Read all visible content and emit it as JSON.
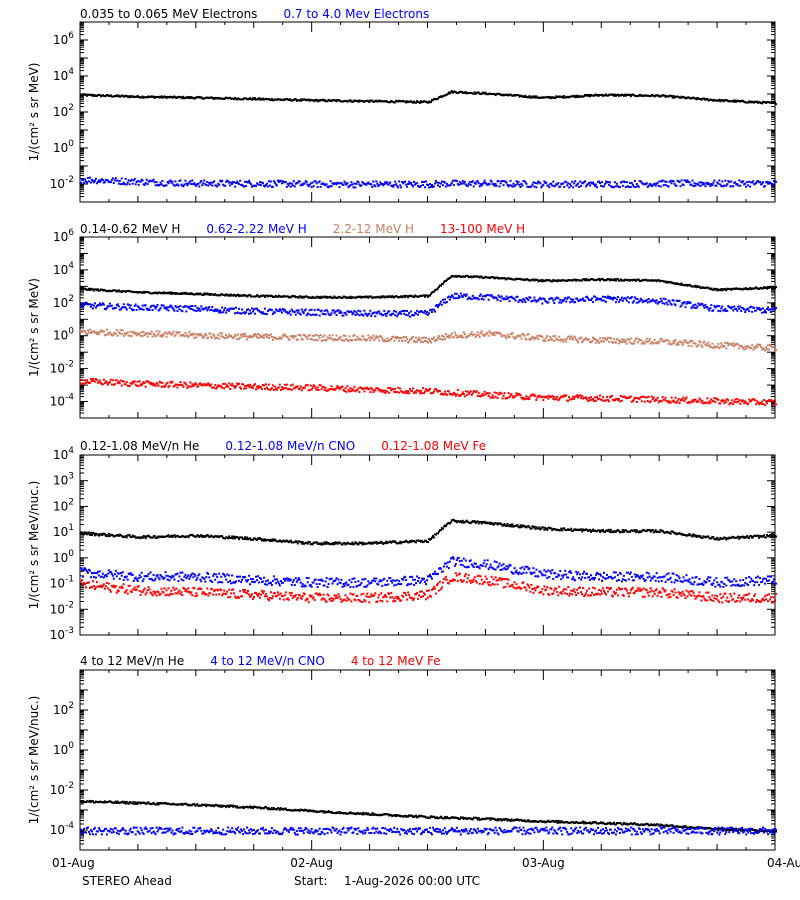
{
  "footer": {
    "spacecraft": "STEREO Ahead",
    "start_label": "Start:",
    "start_value": "1-Aug-2026 00:00 UTC"
  },
  "x_axis": {
    "tick_labels": [
      "01-Aug",
      "02-Aug",
      "03-Aug",
      "04-Aug"
    ],
    "range_days": [
      0,
      3
    ]
  },
  "chart_data": [
    {
      "type": "scatter",
      "title": "",
      "ylabel": "1/(cm² s sr MeV)",
      "yscale": "log",
      "ylim_exp": [
        -3,
        7
      ],
      "ytick_exps": [
        -2,
        0,
        2,
        4,
        6
      ],
      "x": [
        0,
        0.25,
        0.5,
        0.75,
        1.0,
        1.25,
        1.5,
        1.6,
        1.75,
        2.0,
        2.25,
        2.5,
        2.75,
        3.0
      ],
      "series": [
        {
          "name": "0.035 to 0.065 MeV Electrons",
          "color": "#000000",
          "values": [
            1000,
            800,
            700,
            600,
            500,
            450,
            400,
            1500,
            1200,
            700,
            1000,
            900,
            500,
            350
          ]
        },
        {
          "name": "0.7 to 4.0 Mev Electrons",
          "color": "#0000ff",
          "values": [
            0.02,
            0.015,
            0.012,
            0.012,
            0.011,
            0.011,
            0.011,
            0.012,
            0.012,
            0.011,
            0.011,
            0.012,
            0.012,
            0.012
          ]
        }
      ]
    },
    {
      "type": "scatter",
      "title": "",
      "ylabel": "1/(cm² s sr MeV)",
      "yscale": "log",
      "ylim_exp": [
        -5,
        6
      ],
      "ytick_exps": [
        -4,
        -2,
        0,
        2,
        4,
        6
      ],
      "x": [
        0,
        0.25,
        0.5,
        0.75,
        1.0,
        1.25,
        1.5,
        1.6,
        1.75,
        2.0,
        2.25,
        2.5,
        2.75,
        3.0
      ],
      "series": [
        {
          "name": "0.14-0.62 MeV H",
          "color": "#000000",
          "values": [
            800,
            500,
            400,
            300,
            250,
            250,
            300,
            5000,
            4000,
            2500,
            3000,
            2500,
            700,
            1000
          ]
        },
        {
          "name": "0.62-2.22 MeV H",
          "color": "#0000ff",
          "values": [
            80,
            60,
            50,
            35,
            30,
            25,
            25,
            300,
            250,
            150,
            200,
            150,
            50,
            40
          ]
        },
        {
          "name": "2.2-12 MeV H",
          "color": "#cc8066",
          "values": [
            2.0,
            1.6,
            1.2,
            1.0,
            0.9,
            0.8,
            0.6,
            1.2,
            1.5,
            0.8,
            0.6,
            0.5,
            0.3,
            0.2
          ]
        },
        {
          "name": "13-100 MeV H",
          "color": "#ff0000",
          "values": [
            0.002,
            0.0014,
            0.0011,
            0.0009,
            0.0008,
            0.0006,
            0.0005,
            0.0004,
            0.0003,
            0.0002,
            0.00018,
            0.00015,
            0.00012,
            0.0001
          ]
        }
      ]
    },
    {
      "type": "scatter",
      "title": "",
      "ylabel": "1/(cm² s sr MeV/nuc.)",
      "yscale": "log",
      "ylim_exp": [
        -3,
        4
      ],
      "ytick_exps": [
        -3,
        -2,
        -1,
        0,
        1,
        2,
        3,
        4
      ],
      "x": [
        0,
        0.25,
        0.5,
        0.75,
        1.0,
        1.25,
        1.5,
        1.6,
        1.75,
        2.0,
        2.25,
        2.5,
        2.75,
        3.0
      ],
      "series": [
        {
          "name": "0.12-1.08 MeV/n He",
          "color": "#000000",
          "values": [
            10,
            7,
            8,
            6,
            4,
            4,
            5,
            30,
            25,
            15,
            12,
            12,
            6,
            8
          ]
        },
        {
          "name": "0.12-1.08 MeV/n CNO",
          "color": "#0000ff",
          "values": [
            0.3,
            0.2,
            0.2,
            0.15,
            0.12,
            0.12,
            0.15,
            0.8,
            0.6,
            0.25,
            0.2,
            0.2,
            0.12,
            0.15
          ]
        },
        {
          "name": "0.12-1.08 MeV Fe",
          "color": "#ff0000",
          "values": [
            0.1,
            0.06,
            0.05,
            0.04,
            0.03,
            0.03,
            0.04,
            0.2,
            0.15,
            0.06,
            0.05,
            0.05,
            0.03,
            0.03
          ]
        }
      ]
    },
    {
      "type": "scatter",
      "title": "",
      "ylabel": "1/(cm² s sr MeV/nuc.)",
      "yscale": "log",
      "ylim_exp": [
        -5,
        4
      ],
      "ytick_exps": [
        -4,
        -2,
        0,
        2
      ],
      "x": [
        0,
        0.25,
        0.5,
        0.75,
        1.0,
        1.25,
        1.5,
        1.6,
        1.75,
        2.0,
        2.25,
        2.5,
        2.75,
        3.0
      ],
      "series": [
        {
          "name": "4 to 12 MeV/n He",
          "color": "#000000",
          "values": [
            0.003,
            0.0025,
            0.002,
            0.0015,
            0.001,
            0.0007,
            0.0005,
            0.00045,
            0.0004,
            0.0003,
            0.00025,
            0.0002,
            0.00012,
            0.0001
          ]
        },
        {
          "name": "4 to 12 MeV/n CNO",
          "color": "#0000ff",
          "values": [
            0.0001,
            0.0001,
            0.0001,
            0.0001,
            0.0001,
            0.0001,
            0.0001,
            0.0001,
            0.0001,
            0.0001,
            0.0001,
            0.0001,
            0.0001,
            0.0001
          ]
        },
        {
          "name": "4 to 12 MeV Fe",
          "color": "#ff0000",
          "values": []
        }
      ]
    }
  ]
}
